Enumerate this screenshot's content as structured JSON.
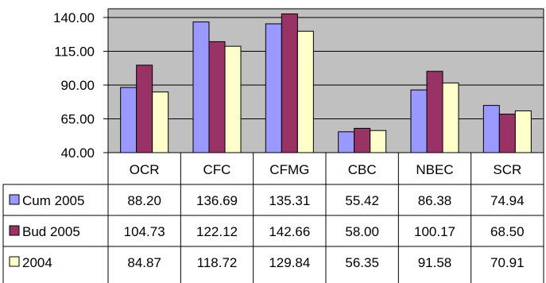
{
  "chart_data": {
    "type": "bar",
    "categories": [
      "OCR",
      "CFC",
      "CFMG",
      "CBC",
      "NBEC",
      "SCR"
    ],
    "series": [
      {
        "name": "Cum 2005",
        "values": [
          88.2,
          136.69,
          135.31,
          55.42,
          86.38,
          74.94
        ],
        "display": [
          "88.20",
          "136.69",
          "135.31",
          "55.42",
          "86.38",
          "74.94"
        ],
        "color": "#9999ff"
      },
      {
        "name": "Bud 2005",
        "values": [
          104.73,
          122.12,
          142.66,
          58.0,
          100.17,
          68.5
        ],
        "display": [
          "104.73",
          "122.12",
          "142.66",
          "58.00",
          "100.17",
          "68.50"
        ],
        "color": "#993366"
      },
      {
        "name": "2004",
        "values": [
          84.87,
          118.72,
          129.84,
          56.35,
          91.58,
          70.91
        ],
        "display": [
          "84.87",
          "118.72",
          "129.84",
          "56.35",
          "91.58",
          "70.91"
        ],
        "color": "#ffffcc"
      }
    ],
    "yticks": [
      "40.00",
      "65.00",
      "90.00",
      "115.00",
      "140.00"
    ],
    "ylim": [
      40,
      140
    ],
    "grid": true,
    "plot_background": "#c0c0c0",
    "legend": "data-table"
  }
}
